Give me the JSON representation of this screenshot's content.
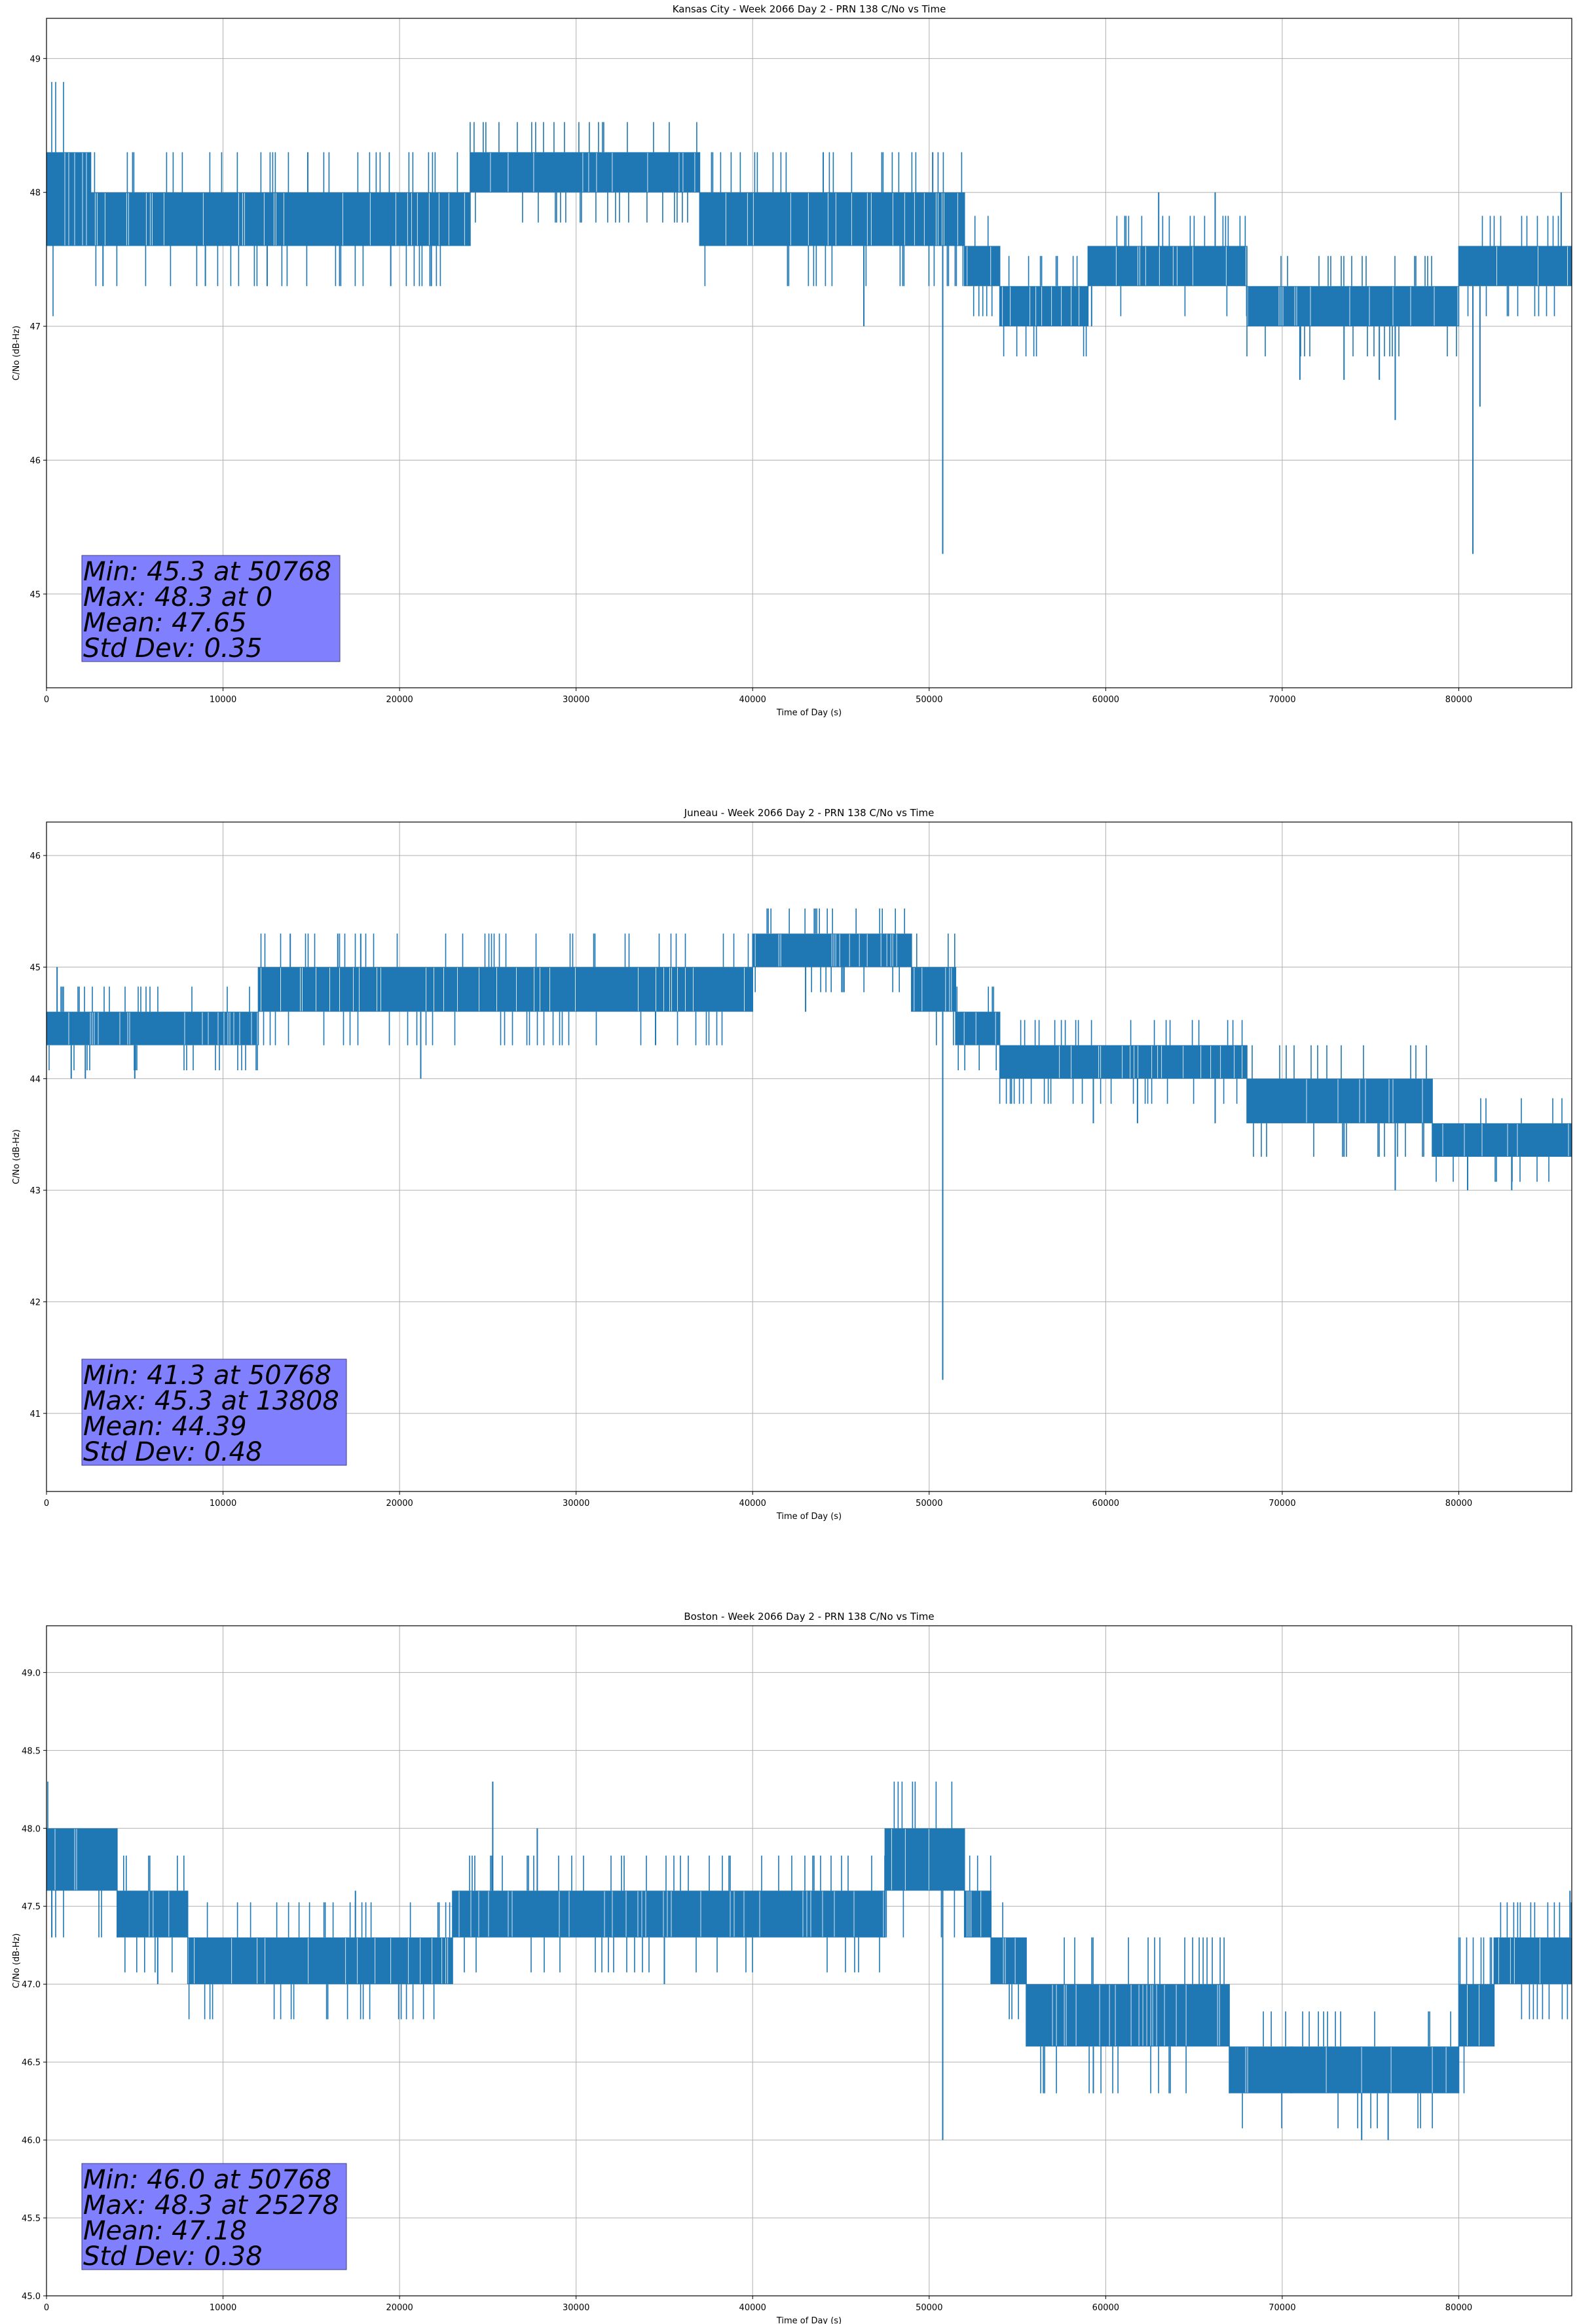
{
  "chart_data": [
    {
      "type": "line",
      "title": "Kansas City - Week 2066 Day 2 - PRN 138 C/No vs Time",
      "xlabel": "Time of Day (s)",
      "ylabel": "C/No (dB-Hz)",
      "xlim": [
        0,
        86400
      ],
      "ylim": [
        44.3,
        49.3
      ],
      "xticks": [
        0,
        10000,
        20000,
        30000,
        40000,
        50000,
        60000,
        70000,
        80000
      ],
      "yticks": [
        45,
        46,
        47,
        48,
        49
      ],
      "ytick_labels": [
        "45",
        "46",
        "47",
        "48",
        "49"
      ],
      "grid": true,
      "color": "#1f77b4",
      "stats_lines": [
        "Min: 45.3 at 50768",
        "Max: 48.3 at 0",
        "Mean: 47.65",
        "Std Dev: 0.35"
      ],
      "stats_box_color": "#8080ff",
      "bands": [
        {
          "x": [
            0,
            2500
          ],
          "low": 47.6,
          "high": 48.3
        },
        {
          "x": [
            2500,
            24000
          ],
          "low": 47.6,
          "high": 48.0
        },
        {
          "x": [
            24000,
            37000
          ],
          "low": 48.0,
          "high": 48.3
        },
        {
          "x": [
            37000,
            52000
          ],
          "low": 47.6,
          "high": 48.0
        },
        {
          "x": [
            52000,
            54000
          ],
          "low": 47.3,
          "high": 47.6
        },
        {
          "x": [
            54000,
            59000
          ],
          "low": 47.0,
          "high": 47.3
        },
        {
          "x": [
            59000,
            68000
          ],
          "low": 47.3,
          "high": 47.6
        },
        {
          "x": [
            68000,
            80000
          ],
          "low": 47.0,
          "high": 47.3
        },
        {
          "x": [
            80000,
            86400
          ],
          "low": 47.3,
          "high": 47.6
        }
      ],
      "spikes": [
        {
          "x": 3200,
          "y": 47.3
        },
        {
          "x": 9000,
          "y": 47.3
        },
        {
          "x": 12500,
          "y": 47.3
        },
        {
          "x": 14800,
          "y": 48.3
        },
        {
          "x": 19500,
          "y": 47.3
        },
        {
          "x": 21800,
          "y": 47.3
        },
        {
          "x": 46300,
          "y": 47.0
        },
        {
          "x": 50768,
          "y": 45.3
        },
        {
          "x": 50200,
          "y": 48.3
        },
        {
          "x": 44000,
          "y": 48.3
        },
        {
          "x": 59200,
          "y": 47.0
        },
        {
          "x": 63000,
          "y": 48.0
        },
        {
          "x": 66200,
          "y": 48.0
        },
        {
          "x": 71000,
          "y": 46.6
        },
        {
          "x": 73500,
          "y": 46.6
        },
        {
          "x": 75500,
          "y": 46.6
        },
        {
          "x": 76400,
          "y": 46.3
        },
        {
          "x": 80800,
          "y": 45.3
        },
        {
          "x": 81200,
          "y": 46.4
        },
        {
          "x": 85800,
          "y": 48.0
        }
      ]
    },
    {
      "type": "line",
      "title": "Juneau - Week 2066 Day 2 - PRN 138 C/No vs Time",
      "xlabel": "Time of Day (s)",
      "ylabel": "C/No (dB-Hz)",
      "xlim": [
        0,
        86400
      ],
      "ylim": [
        40.3,
        46.3
      ],
      "xticks": [
        0,
        10000,
        20000,
        30000,
        40000,
        50000,
        60000,
        70000,
        80000
      ],
      "yticks": [
        41,
        42,
        43,
        44,
        45,
        46
      ],
      "ytick_labels": [
        "41",
        "42",
        "43",
        "44",
        "45",
        "46"
      ],
      "grid": true,
      "color": "#1f77b4",
      "stats_lines": [
        "Min: 41.3 at 50768",
        "Max: 45.3 at 13808",
        "Mean: 44.39",
        "Std Dev: 0.48"
      ],
      "stats_box_color": "#8080ff",
      "bands": [
        {
          "x": [
            0,
            12000
          ],
          "low": 44.3,
          "high": 44.6
        },
        {
          "x": [
            12000,
            40000
          ],
          "low": 44.6,
          "high": 45.0
        },
        {
          "x": [
            40000,
            49000
          ],
          "low": 45.0,
          "high": 45.3
        },
        {
          "x": [
            49000,
            51500
          ],
          "low": 44.6,
          "high": 45.0
        },
        {
          "x": [
            51500,
            54000
          ],
          "low": 44.3,
          "high": 44.6
        },
        {
          "x": [
            54000,
            68000
          ],
          "low": 44.0,
          "high": 44.3
        },
        {
          "x": [
            68000,
            78500
          ],
          "low": 43.6,
          "high": 44.0
        },
        {
          "x": [
            78500,
            86400
          ],
          "low": 43.3,
          "high": 43.6
        }
      ],
      "spikes": [
        {
          "x": 600,
          "y": 45.0
        },
        {
          "x": 1400,
          "y": 44.0
        },
        {
          "x": 2200,
          "y": 44.0
        },
        {
          "x": 5000,
          "y": 44.0
        },
        {
          "x": 13808,
          "y": 45.3
        },
        {
          "x": 16500,
          "y": 45.3
        },
        {
          "x": 17800,
          "y": 45.3
        },
        {
          "x": 21200,
          "y": 44.0
        },
        {
          "x": 34500,
          "y": 44.3
        },
        {
          "x": 43000,
          "y": 44.6
        },
        {
          "x": 50768,
          "y": 41.3
        },
        {
          "x": 59300,
          "y": 43.6
        },
        {
          "x": 61800,
          "y": 43.6
        },
        {
          "x": 66200,
          "y": 43.6
        },
        {
          "x": 73500,
          "y": 43.3
        },
        {
          "x": 76400,
          "y": 43.0
        },
        {
          "x": 80500,
          "y": 43.0
        },
        {
          "x": 83000,
          "y": 43.0
        }
      ]
    },
    {
      "type": "line",
      "title": "Boston - Week 2066 Day 2 - PRN 138 C/No vs Time",
      "xlabel": "Time of Day (s)",
      "ylabel": "C/No (dB-Hz)",
      "xlim": [
        0,
        86400
      ],
      "ylim": [
        45.0,
        49.3
      ],
      "xticks": [
        0,
        10000,
        20000,
        30000,
        40000,
        50000,
        60000,
        70000,
        80000
      ],
      "yticks": [
        45.0,
        45.5,
        46.0,
        46.5,
        47.0,
        47.5,
        48.0,
        48.5,
        49.0
      ],
      "ytick_labels": [
        "45.0",
        "45.5",
        "46.0",
        "46.5",
        "47.0",
        "47.5",
        "48.0",
        "48.5",
        "49.0"
      ],
      "grid": true,
      "color": "#1f77b4",
      "stats_lines": [
        "Min: 46.0 at 50768",
        "Max: 48.3 at 25278",
        "Mean: 47.18",
        "Std Dev: 0.38"
      ],
      "stats_box_color": "#8080ff",
      "bands": [
        {
          "x": [
            0,
            4000
          ],
          "low": 47.6,
          "high": 48.0
        },
        {
          "x": [
            4000,
            8000
          ],
          "low": 47.3,
          "high": 47.6
        },
        {
          "x": [
            8000,
            23000
          ],
          "low": 47.0,
          "high": 47.3
        },
        {
          "x": [
            23000,
            47500
          ],
          "low": 47.3,
          "high": 47.6
        },
        {
          "x": [
            47500,
            52000
          ],
          "low": 47.6,
          "high": 48.0
        },
        {
          "x": [
            52000,
            53500
          ],
          "low": 47.3,
          "high": 47.6
        },
        {
          "x": [
            53500,
            55500
          ],
          "low": 47.0,
          "high": 47.3
        },
        {
          "x": [
            55500,
            67000
          ],
          "low": 46.6,
          "high": 47.0
        },
        {
          "x": [
            67000,
            80000
          ],
          "low": 46.3,
          "high": 46.6
        },
        {
          "x": [
            80000,
            82000
          ],
          "low": 46.6,
          "high": 47.0
        },
        {
          "x": [
            82000,
            86400
          ],
          "low": 47.0,
          "high": 47.3
        }
      ],
      "spikes": [
        {
          "x": 300,
          "y": 47.3
        },
        {
          "x": 6300,
          "y": 47.0
        },
        {
          "x": 17500,
          "y": 47.6
        },
        {
          "x": 25278,
          "y": 48.3
        },
        {
          "x": 27800,
          "y": 48.0
        },
        {
          "x": 35000,
          "y": 47.0
        },
        {
          "x": 50768,
          "y": 46.0
        },
        {
          "x": 59300,
          "y": 46.3
        },
        {
          "x": 70500,
          "y": 46.3
        },
        {
          "x": 74500,
          "y": 46.0
        },
        {
          "x": 76000,
          "y": 46.0
        },
        {
          "x": 86300,
          "y": 47.6
        }
      ]
    }
  ]
}
